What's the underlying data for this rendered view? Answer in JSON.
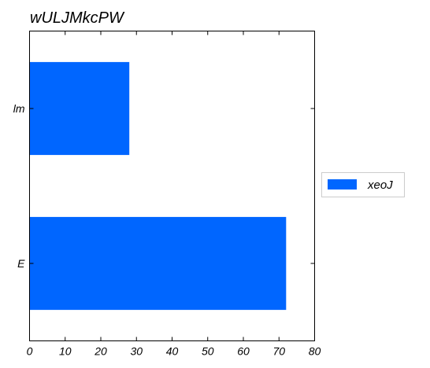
{
  "chart_data": {
    "type": "bar",
    "orientation": "horizontal",
    "title": "wULJMkcPW",
    "xlabel": "",
    "ylabel": "",
    "categories": [
      "E",
      "lm"
    ],
    "series": [
      {
        "name": "xeoJ",
        "values": [
          72,
          28
        ],
        "color": "#0066ff"
      }
    ],
    "xlim": [
      0,
      80
    ],
    "xticks": [
      0,
      10,
      20,
      30,
      40,
      50,
      60,
      70,
      80
    ],
    "grid": false,
    "legend": {
      "position": "right"
    }
  }
}
